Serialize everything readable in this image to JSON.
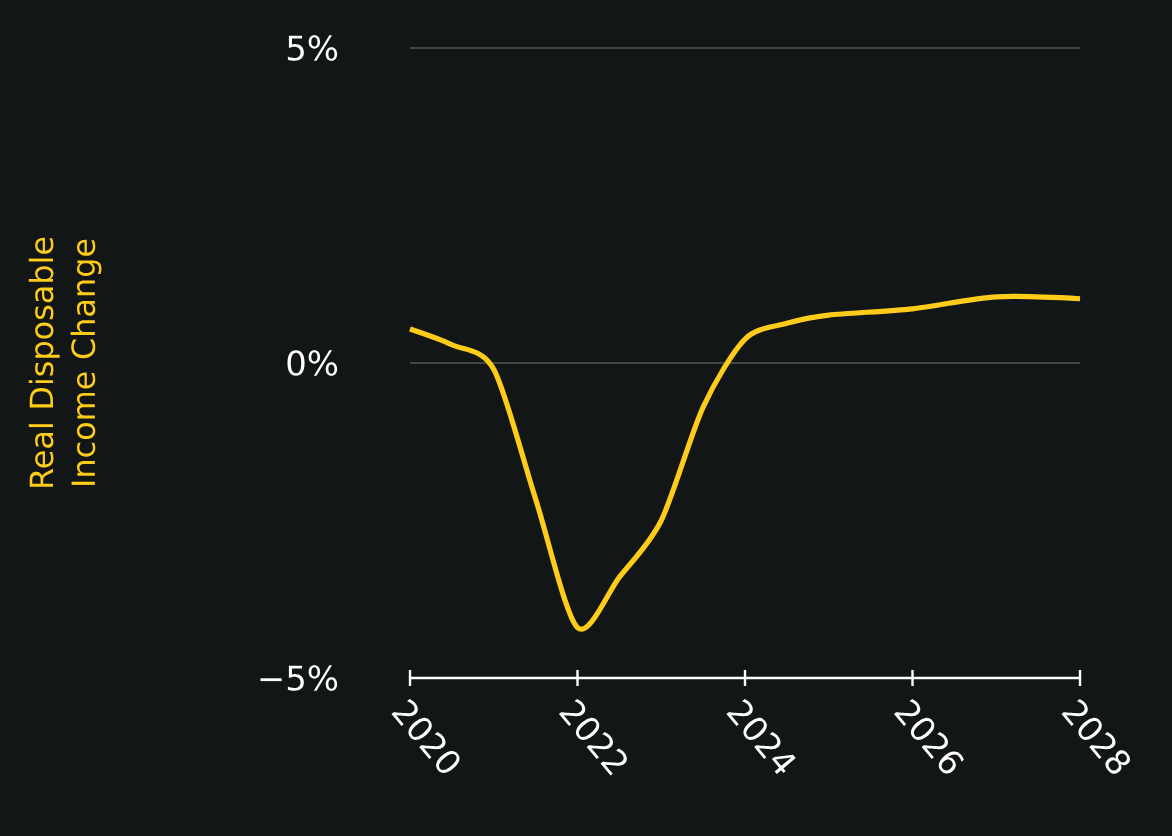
{
  "chart_data": {
    "type": "line",
    "ylabel": "Real Disposable Income Change",
    "x": [
      2020,
      2020.5,
      2021,
      2021.5,
      2022,
      2022.5,
      2023,
      2023.5,
      2024,
      2024.5,
      2025,
      2026,
      2027,
      2028
    ],
    "series": [
      {
        "color": "#ffcc1a",
        "values": [
          0.54,
          0.29,
          -0.1,
          -2.16,
          -4.2,
          -3.4,
          -2.5,
          -0.7,
          0.38,
          0.63,
          0.76,
          0.86,
          1.05,
          1.02
        ]
      }
    ],
    "xlim": [
      2020,
      2028
    ],
    "xticks": [
      2020,
      2022,
      2024,
      2026,
      2028
    ],
    "ylim": [
      -5,
      5
    ],
    "yticks": [
      {
        "value": -5,
        "label": "−5%"
      },
      {
        "value": 0,
        "label": "0%"
      },
      {
        "value": 5,
        "label": "5%"
      }
    ],
    "grid": "y",
    "marker": "none",
    "line_style": "solid"
  }
}
